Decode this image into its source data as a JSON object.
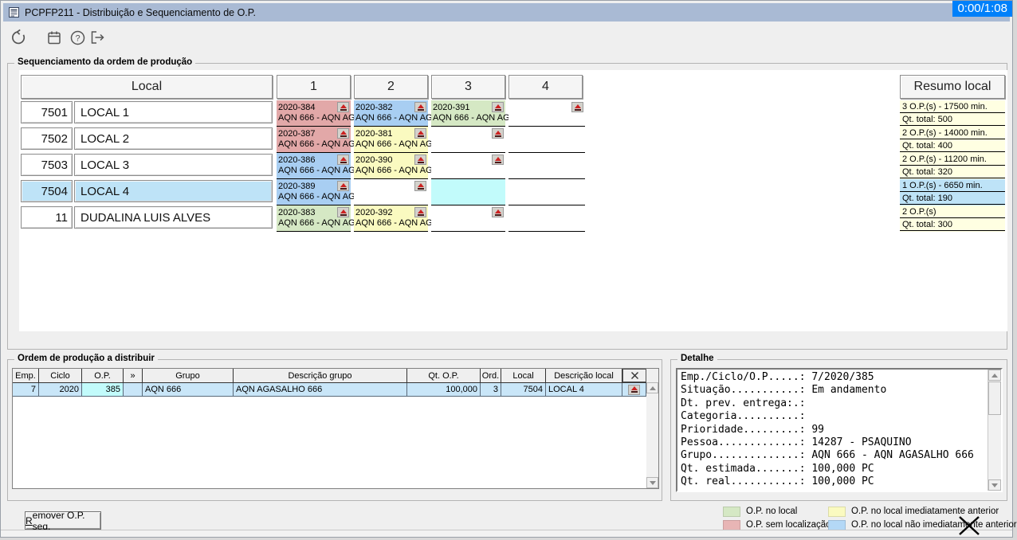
{
  "window": {
    "title": "PCPFP211 - Distribuição e Sequenciamento de O.P.",
    "timer": "0:00/1:08"
  },
  "toolbar": {
    "buttons": [
      "refresh",
      "calendar",
      "help",
      "exit"
    ]
  },
  "colors": {
    "red": "#E2A8A8",
    "blue": "#A8CEF2",
    "green": "#D5E8C4",
    "yellow": "#FAFAC0",
    "cyan": "#C2FBFB",
    "white": "#FFFFFF",
    "resumo_bg": "#FFFFE2",
    "selected_blue": "#BEE3F7",
    "grid_row_blue": "#C9E6F8",
    "timer_bg": "#0080FA"
  },
  "sequencing": {
    "group_title": "Sequenciamento da ordem de produção",
    "local_header": "Local",
    "position_headers": [
      "1",
      "2",
      "3",
      "4"
    ],
    "resumo_header": "Resumo local",
    "rows": [
      {
        "code": "7501",
        "name": "LOCAL 1",
        "selected": false,
        "cells": [
          {
            "op": "2020-384",
            "group": "AQN 666 - AQN AG",
            "color": "red",
            "eject": true
          },
          {
            "op": "2020-382",
            "group": "AQN 666 - AQN AG",
            "color": "blue",
            "eject": true
          },
          {
            "op": "2020-391",
            "group": "AQN 666 - AQN AG",
            "color": "green",
            "eject": true
          },
          {
            "op": "",
            "group": "",
            "color": "white",
            "eject": true
          }
        ],
        "resumo": {
          "ops": "3 O.P.(s) - 17500 min.",
          "qt": "Qt. total: 500",
          "selected": false
        }
      },
      {
        "code": "7502",
        "name": "LOCAL 2",
        "selected": false,
        "cells": [
          {
            "op": "2020-387",
            "group": "AQN 666 - AQN AG",
            "color": "red",
            "eject": true
          },
          {
            "op": "2020-381",
            "group": "AQN 666 - AQN AG",
            "color": "yellow",
            "eject": true
          },
          {
            "op": "",
            "group": "",
            "color": "white",
            "eject": true
          },
          {
            "op": "",
            "group": "",
            "color": "white",
            "eject": false
          }
        ],
        "resumo": {
          "ops": "2 O.P.(s) - 14000 min.",
          "qt": "Qt. total: 400",
          "selected": false
        }
      },
      {
        "code": "7503",
        "name": "LOCAL 3",
        "selected": false,
        "cells": [
          {
            "op": "2020-386",
            "group": "AQN 666 - AQN AG",
            "color": "blue",
            "eject": true
          },
          {
            "op": "2020-390",
            "group": "AQN 666 - AQN AG",
            "color": "yellow",
            "eject": true
          },
          {
            "op": "",
            "group": "",
            "color": "white",
            "eject": true
          },
          {
            "op": "",
            "group": "",
            "color": "white",
            "eject": false
          }
        ],
        "resumo": {
          "ops": "2 O.P.(s) - 11200 min.",
          "qt": "Qt. total: 320",
          "selected": false
        }
      },
      {
        "code": "7504",
        "name": "LOCAL 4",
        "selected": true,
        "cells": [
          {
            "op": "2020-389",
            "group": "AQN 666 - AQN AG",
            "color": "blue",
            "eject": true
          },
          {
            "op": "",
            "group": "",
            "color": "white",
            "eject": true
          },
          {
            "op": "",
            "group": "",
            "color": "cyan",
            "eject": false
          },
          {
            "op": "",
            "group": "",
            "color": "white",
            "eject": false
          }
        ],
        "resumo": {
          "ops": "1 O.P.(s) - 6650 min.",
          "qt": "Qt. total: 190",
          "selected": true
        }
      },
      {
        "code": "11",
        "name": "DUDALINA LUIS ALVES",
        "selected": false,
        "cells": [
          {
            "op": "2020-383",
            "group": "AQN 666 - AQN AG",
            "color": "green",
            "eject": true
          },
          {
            "op": "2020-392",
            "group": "AQN 666 - AQN AG",
            "color": "yellow",
            "eject": true
          },
          {
            "op": "",
            "group": "",
            "color": "white",
            "eject": true
          },
          {
            "op": "",
            "group": "",
            "color": "white",
            "eject": false
          }
        ],
        "resumo": {
          "ops": "2 O.P.(s)",
          "qt": "Qt. total: 300",
          "selected": false
        }
      }
    ]
  },
  "distribute": {
    "group_title": "Ordem de produção a distribuir",
    "columns": [
      "Emp.",
      "Ciclo",
      "O.P.",
      "»",
      "Grupo",
      "Descrição grupo",
      "Qt. O.P.",
      "Ord.",
      "Local",
      "Descrição local"
    ],
    "row": [
      "7",
      "2020",
      "385",
      "",
      "AQN 666",
      "AQN AGASALHO 666",
      "100,000",
      "3",
      "7504",
      "LOCAL 4"
    ]
  },
  "detail": {
    "group_title": "Detalhe",
    "lines": [
      "Emp./Ciclo/O.P.....: 7/2020/385",
      "Situação...........: Em andamento",
      "Dt. prev. entrega:.:",
      "Categoria..........:",
      "Prioridade.........: 99",
      "Pessoa.............: 14287 - PSAQUINO",
      "Grupo..............: AQN 666 - AQN AGASALHO 666",
      "Qt. estimada.......: 100,000 PC",
      "Qt. real...........: 100,000 PC"
    ]
  },
  "footer": {
    "remove_button": "Remover O.P. seq.",
    "legend": [
      {
        "label": "O.P. no local",
        "color": "#D5E8C4"
      },
      {
        "label": "O.P. sem localização",
        "color": "#E8B5B5"
      },
      {
        "label": "O.P. no local imediatamente anterior",
        "color": "#FAFAC0"
      },
      {
        "label": "O.P. no local não imediatamente anterior",
        "color": "#B4D8F6"
      }
    ]
  }
}
